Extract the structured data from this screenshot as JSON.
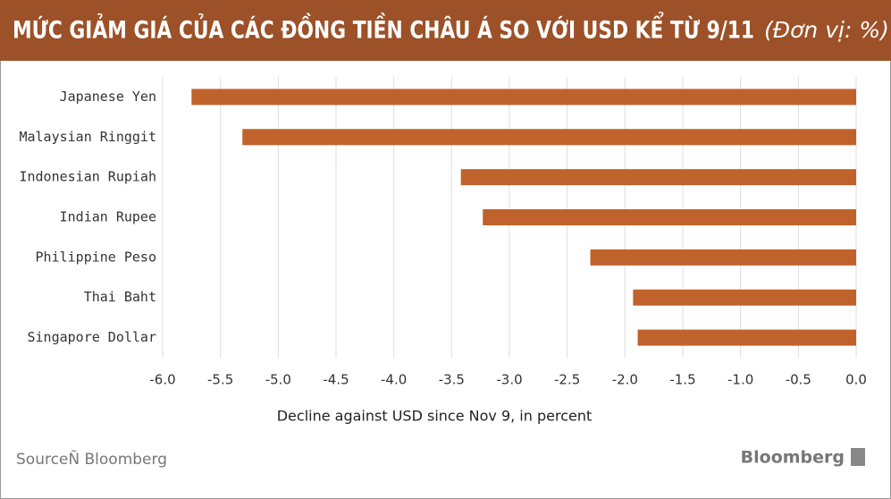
{
  "chart_data": {
    "type": "bar",
    "orientation": "horizontal",
    "title": "MỨC GIẢM GIÁ CỦA CÁC ĐỒNG TIỀN CHÂU Á SO VỚI USD KỂ TỪ 9/11",
    "subtitle": "(Đơn vị: %)",
    "categories": [
      "Japanese Yen",
      "Malaysian Ringgit",
      "Indonesian Rupiah",
      "Indian Rupee",
      "Philippine Peso",
      "Thai Baht",
      "Singapore Dollar"
    ],
    "values": [
      -5.75,
      -5.31,
      -3.42,
      -3.23,
      -2.3,
      -1.93,
      -1.89
    ],
    "color": "#c0622b",
    "xlim": [
      -6,
      0
    ],
    "xticks": [
      {
        "value": -6,
        "label": "-6.0"
      },
      {
        "value": -5.5,
        "label": "-5.5"
      },
      {
        "value": -5,
        "label": "-5.0"
      },
      {
        "value": -4.5,
        "label": "-4.5"
      },
      {
        "value": -4,
        "label": "-4.0"
      },
      {
        "value": -3.5,
        "label": "-3.5"
      },
      {
        "value": -3,
        "label": "-3.0"
      },
      {
        "value": -2.5,
        "label": "-2.5"
      },
      {
        "value": -2,
        "label": "-2.0"
      },
      {
        "value": -1.5,
        "label": "-1.5"
      },
      {
        "value": -1,
        "label": "-1.0"
      },
      {
        "value": -0.5,
        "label": "-0.5"
      },
      {
        "value": 0,
        "label": "0.0"
      }
    ],
    "xlabel": "Decline against USD since Nov 9, in percent",
    "grid": true,
    "source": "SourceÑ Bloomberg",
    "logo": "Bloomberg"
  }
}
